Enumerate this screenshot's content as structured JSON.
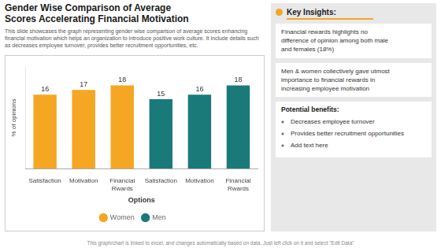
{
  "chart_data": {
    "type": "bar",
    "title": [
      "Gender Wise Comparison of Average",
      "Scores Accelerating Financial Motivation"
    ],
    "subtitle": "This slide showcases the graph representing gender wise comparison of average scores enhancing financial motivation which helps an organization to introduce positive work culture. It include details such as decreases employee turnover, provides better recruitment opportunities, etc.",
    "xlabel": "Options",
    "ylabel": "% of opinions",
    "categories": [
      "Satisfaction",
      "Motivation",
      "Financial Rwards",
      "Satisfaction",
      "Motivation",
      "Financial Rwards"
    ],
    "series": [
      {
        "name": "Women",
        "color": "#F5A623",
        "values": [
          16,
          17,
          18,
          null,
          null,
          null
        ]
      },
      {
        "name": "Men",
        "color": "#1A7A7A",
        "values": [
          null,
          null,
          null,
          15,
          16,
          18
        ]
      }
    ],
    "ylim": [
      0,
      22
    ],
    "grid": false,
    "legend": "bottom",
    "data_labels": true,
    "tick_labels": "x",
    "annotations": [
      {
        "title": "Key Insights:",
        "color": "#F5A623",
        "items": [
          "Financial rewards highlights no\ndifference of opinion among both male\nand females (18%)",
          "Men & women collectively gave utmost\nimportance to financial rewards in\nincreasing employee motivation"
        ]
      },
      {
        "title": "Potential benefits:",
        "items": [
          "Decreases employee turnover",
          "Provides better recruitment opportunities",
          "Add text here"
        ]
      }
    ],
    "footer": "This graph/chart is linked to excel, and changes automatically based on data. Just left click on it and select \"Edit Data\""
  }
}
